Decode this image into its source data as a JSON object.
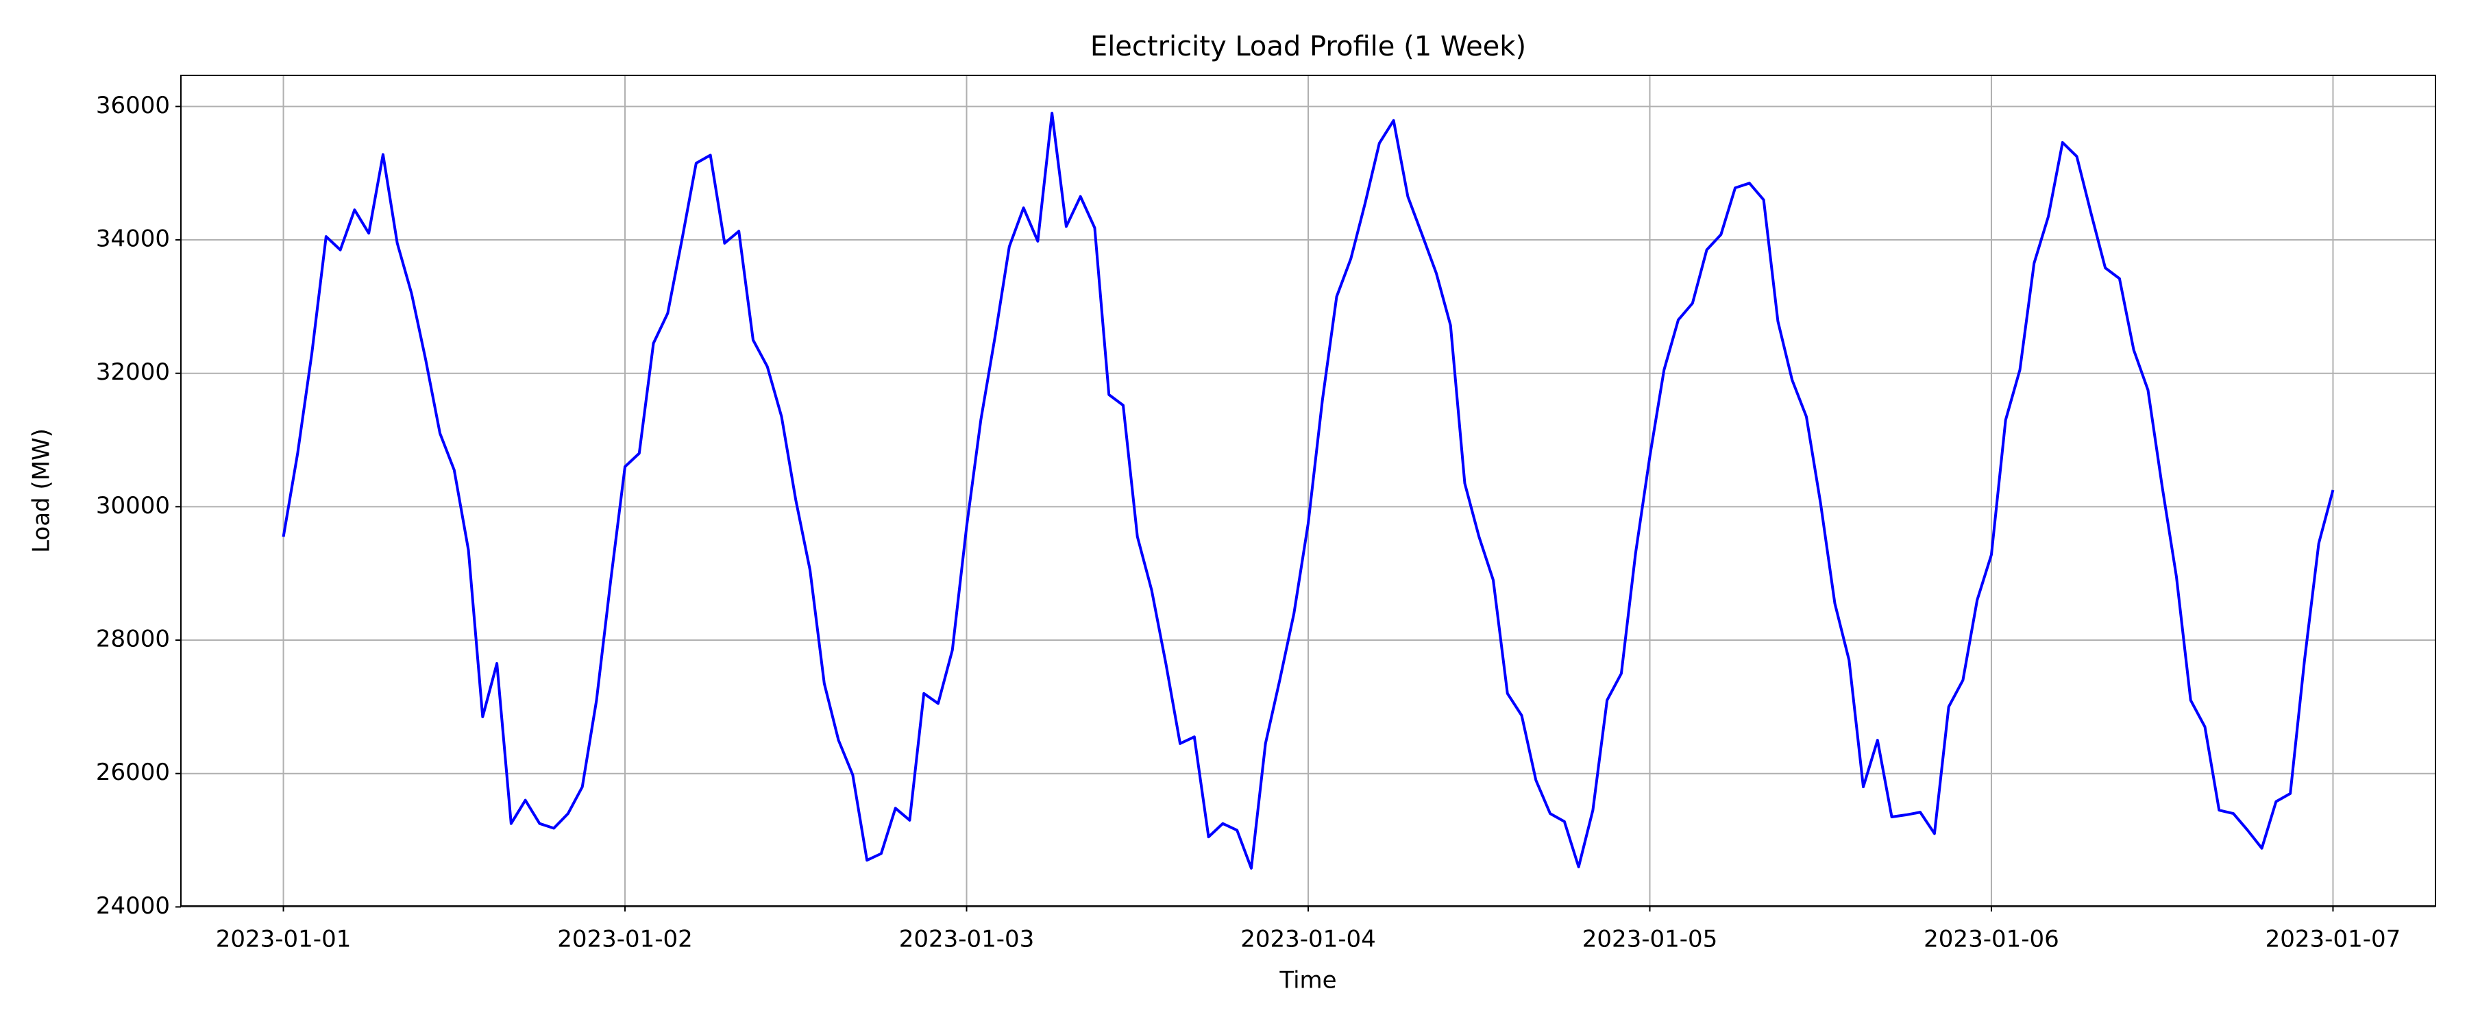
{
  "chart_data": {
    "type": "line",
    "title": "Electricity Load Profile (1 Week)",
    "x_label": "Time",
    "y_label": "Load (MW)",
    "categories": [
      "2023-01-01",
      null,
      null,
      null,
      null,
      null,
      null,
      null,
      null,
      null,
      null,
      null,
      null,
      null,
      null,
      null,
      null,
      null,
      null,
      null,
      null,
      null,
      null,
      null,
      "2023-01-02",
      null,
      null,
      null,
      null,
      null,
      null,
      null,
      null,
      null,
      null,
      null,
      null,
      null,
      null,
      null,
      null,
      null,
      null,
      null,
      null,
      null,
      null,
      null,
      "2023-01-03",
      null,
      null,
      null,
      null,
      null,
      null,
      null,
      null,
      null,
      null,
      null,
      null,
      null,
      null,
      null,
      null,
      null,
      null,
      null,
      null,
      null,
      null,
      null,
      "2023-01-04",
      null,
      null,
      null,
      null,
      null,
      null,
      null,
      null,
      null,
      null,
      null,
      null,
      null,
      null,
      null,
      null,
      null,
      null,
      null,
      null,
      null,
      null,
      null,
      "2023-01-05",
      null,
      null,
      null,
      null,
      null,
      null,
      null,
      null,
      null,
      null,
      null,
      null,
      null,
      null,
      null,
      null,
      null,
      null,
      null,
      null,
      null,
      null,
      null,
      "2023-01-06",
      null,
      null,
      null,
      null,
      null,
      null,
      null,
      null,
      null,
      null,
      null,
      null,
      null,
      null,
      null,
      null,
      null,
      null,
      null,
      null,
      null,
      null,
      null,
      "2023-01-07"
    ],
    "values": [
      29550,
      30800,
      32300,
      34050,
      33850,
      34450,
      34100,
      35280,
      33950,
      33200,
      32200,
      31100,
      30550,
      29350,
      26850,
      27650,
      25250,
      25600,
      25250,
      25180,
      25400,
      25800,
      27100,
      28900,
      30600,
      30800,
      32450,
      32900,
      34000,
      35150,
      35270,
      33950,
      34130,
      32500,
      32100,
      31350,
      30100,
      29050,
      27350,
      26500,
      25980,
      24700,
      24800,
      25480,
      25300,
      27200,
      27050,
      27850,
      29700,
      31300,
      32550,
      33900,
      34480,
      33980,
      35900,
      34200,
      34650,
      34180,
      31680,
      31520,
      29550,
      28750,
      27650,
      26450,
      26550,
      25050,
      25250,
      25150,
      24580,
      26450,
      27400,
      28400,
      29750,
      31600,
      33150,
      33720,
      34550,
      35450,
      35790,
      34650,
      34080,
      33500,
      32720,
      30350,
      29550,
      28900,
      27200,
      26870,
      25900,
      25400,
      25280,
      24600,
      25450,
      27100,
      27500,
      29300,
      30750,
      32050,
      32800,
      33050,
      33850,
      34080,
      34780,
      34850,
      34600,
      32780,
      31900,
      31350,
      30050,
      28550,
      27700,
      25800,
      26500,
      25350,
      25380,
      25420,
      25100,
      27000,
      27400,
      28600,
      29280,
      31300,
      32050,
      33650,
      34350,
      35460,
      35250,
      34400,
      33580,
      33420,
      32350,
      31750,
      30300,
      28950,
      27100,
      26700,
      25450,
      25400,
      25150,
      24880,
      25580,
      25700,
      27700,
      29450,
      30250
    ],
    "color": "#0000ff",
    "ylim": [
      24014,
      36466
    ],
    "yticks": [
      24000,
      26000,
      28000,
      30000,
      32000,
      34000,
      36000
    ],
    "grid": true
  }
}
